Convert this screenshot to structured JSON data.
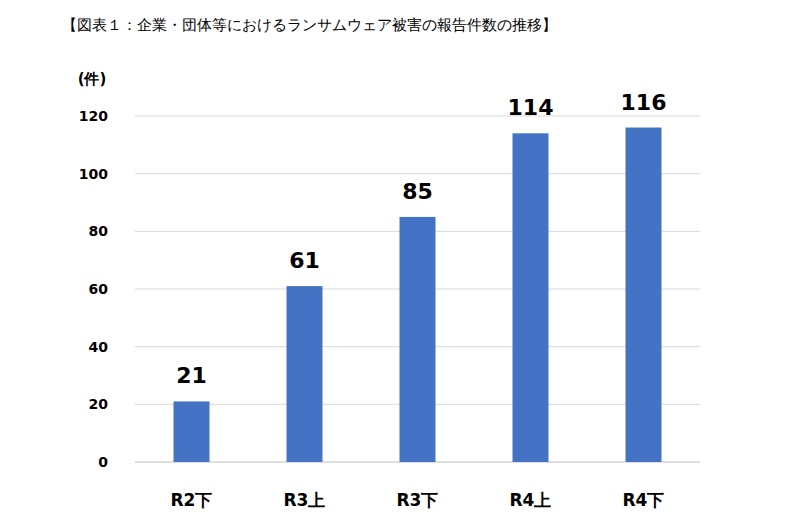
{
  "chart_data": {
    "type": "bar",
    "title": "【図表１：企業・団体等におけるランサムウェア被害の報告件数の推移】",
    "ylabel": "(件)",
    "categories": [
      "R2下",
      "R3上",
      "R3下",
      "R4上",
      "R4下"
    ],
    "values": [
      21,
      61,
      85,
      114,
      116
    ],
    "color": "#4472c4",
    "ylim": [
      0,
      120
    ],
    "yticks": [
      0,
      20,
      40,
      60,
      80,
      100,
      120
    ],
    "grid": true,
    "data_labels": true
  }
}
